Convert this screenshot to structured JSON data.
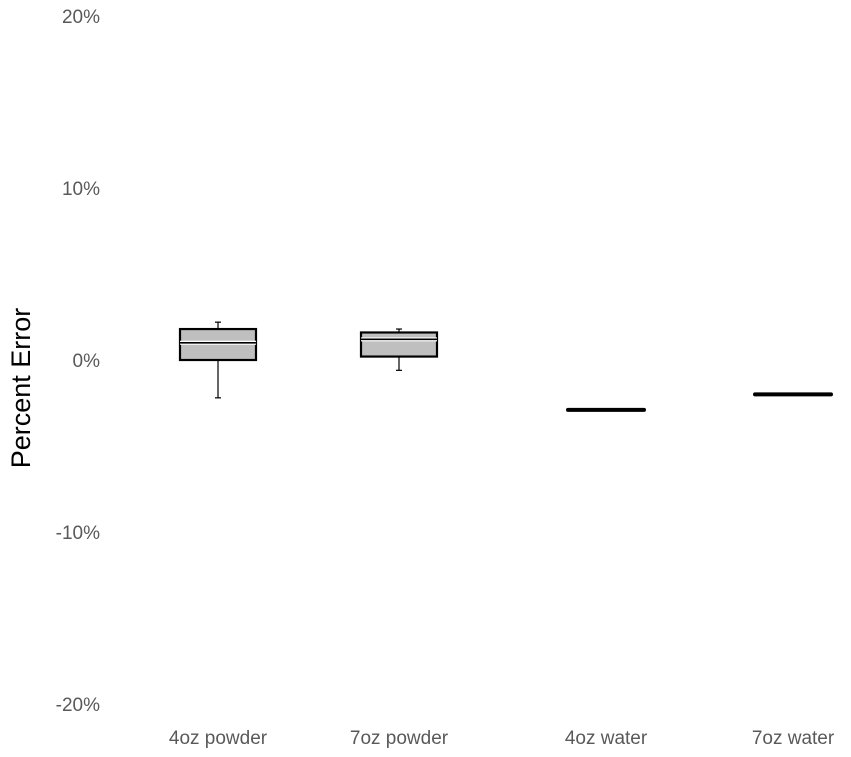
{
  "chart_data": {
    "type": "box",
    "title": "",
    "xlabel": "",
    "ylabel": "Percent Error",
    "ylim": [
      -20,
      20
    ],
    "yticks": [
      20,
      10,
      0,
      -10,
      -20
    ],
    "ytick_labels": [
      "20%",
      "10%",
      "0%",
      "-10%",
      "-20%"
    ],
    "grid": false,
    "legend": "none",
    "categories": [
      "4oz powder",
      "7oz powder",
      "4oz water",
      "7oz water"
    ],
    "boxes": [
      {
        "category": "4oz powder",
        "min": -2.2,
        "q1": 0.0,
        "median": 1.0,
        "q3": 1.8,
        "max": 2.2
      },
      {
        "category": "7oz powder",
        "min": -0.6,
        "q1": 0.2,
        "median": 1.2,
        "q3": 1.6,
        "max": 1.8
      },
      {
        "category": "4oz water",
        "min": -2.9,
        "q1": -2.9,
        "median": -2.9,
        "q3": -2.9,
        "max": -2.85
      },
      {
        "category": "7oz water",
        "min": -2.0,
        "q1": -2.0,
        "median": -2.0,
        "q3": -2.0,
        "max": -2.0
      }
    ],
    "colors": {
      "box_fill": "#bfbfbf",
      "box_stroke": "#000000",
      "tick_text": "#595959",
      "axis_title": "#000000"
    }
  }
}
